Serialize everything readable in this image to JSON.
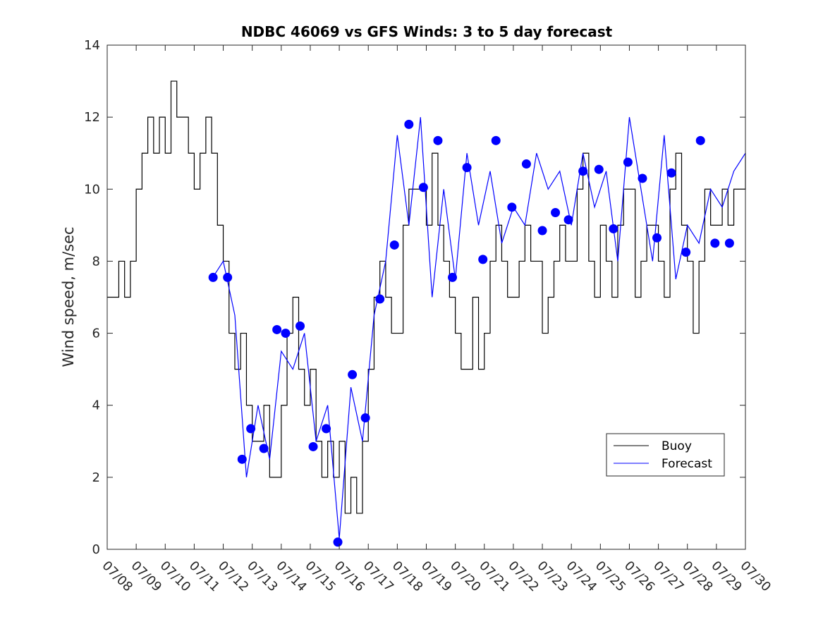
{
  "chart_data": {
    "type": "line",
    "title": "NDBC 46069 vs GFS Winds: 3 to 5 day forecast",
    "xlabel": "",
    "ylabel": "Wind speed, m/sec",
    "ylim": [
      0,
      14
    ],
    "xlim": [
      "07/08",
      "07/30"
    ],
    "y_ticks": [
      "0",
      "2",
      "4",
      "6",
      "8",
      "10",
      "12",
      "14"
    ],
    "x_ticks": [
      "07/08",
      "07/09",
      "07/10",
      "07/11",
      "07/12",
      "07/13",
      "07/14",
      "07/15",
      "07/16",
      "07/17",
      "07/18",
      "07/19",
      "07/20",
      "07/21",
      "07/22",
      "07/23",
      "07/24",
      "07/25",
      "07/26",
      "07/27",
      "07/28",
      "07/29",
      "07/30"
    ],
    "x_units": "days since 07/08 on the shared date axis",
    "legend": {
      "placement": "lower-right",
      "entries": [
        "Buoy",
        "Forecast"
      ]
    },
    "colors": {
      "buoy": "#000000",
      "forecast": "#0000ff"
    },
    "series": [
      {
        "name": "Buoy",
        "style": "line",
        "x": [
          0.0,
          0.2,
          0.4,
          0.6,
          0.8,
          1.0,
          1.2,
          1.4,
          1.6,
          1.8,
          2.0,
          2.2,
          2.4,
          2.6,
          2.8,
          3.0,
          3.2,
          3.4,
          3.6,
          3.8,
          4.0,
          4.2,
          4.4,
          4.6,
          4.8,
          5.0,
          5.2,
          5.4,
          5.6,
          5.8,
          6.0,
          6.2,
          6.4,
          6.6,
          6.8,
          7.0,
          7.2,
          7.4,
          7.6,
          7.8,
          8.0,
          8.2,
          8.4,
          8.6,
          8.8,
          9.0,
          9.2,
          9.4,
          9.6,
          9.8,
          10.0,
          10.2,
          10.4,
          10.6,
          10.8,
          11.0,
          11.2,
          11.4,
          11.6,
          11.8,
          12.0,
          12.2,
          12.4,
          12.6,
          12.8,
          13.0,
          13.2,
          13.4,
          13.6,
          13.8,
          14.0,
          14.2,
          14.4,
          14.6,
          14.8,
          15.0,
          15.2,
          15.4,
          15.6,
          15.8,
          16.0,
          16.2,
          16.4,
          16.6,
          16.8,
          17.0,
          17.2,
          17.4,
          17.6,
          17.8,
          18.0,
          18.2,
          18.4,
          18.6,
          18.8,
          19.0,
          19.2,
          19.4,
          19.6,
          19.8,
          20.0,
          20.2,
          20.4,
          20.6,
          20.8,
          21.0,
          21.2,
          21.4,
          21.6,
          21.8,
          22.0
        ],
        "y": [
          7,
          7,
          8,
          7,
          8,
          10,
          11,
          12,
          11,
          12,
          11,
          13,
          12,
          12,
          11,
          10,
          11,
          12,
          11,
          9,
          8,
          6,
          5,
          6,
          4,
          3,
          3,
          4,
          2,
          2,
          4,
          6,
          7,
          5,
          4,
          5,
          3,
          2,
          3,
          2,
          3,
          1,
          2,
          1,
          3,
          5,
          7,
          8,
          7,
          6,
          6,
          9,
          10,
          10,
          10,
          9,
          11,
          9,
          8,
          7,
          6,
          5,
          5,
          7,
          5,
          6,
          8,
          9,
          8,
          7,
          7,
          8,
          9,
          8,
          8,
          6,
          7,
          8,
          9,
          8,
          8,
          10,
          11,
          8,
          7,
          9,
          8,
          7,
          9,
          10,
          10,
          7,
          8,
          9,
          9,
          8,
          7,
          10,
          11,
          9,
          8,
          6,
          8,
          10,
          9,
          9,
          10,
          9,
          10,
          10,
          11
        ]
      },
      {
        "name": "Forecast",
        "style": "line",
        "x": [
          3.6,
          4.0,
          4.4,
          4.8,
          5.2,
          5.6,
          6.0,
          6.4,
          6.8,
          7.2,
          7.6,
          8.0,
          8.4,
          8.8,
          9.2,
          9.6,
          10.0,
          10.4,
          10.8,
          11.2,
          11.6,
          12.0,
          12.4,
          12.8,
          13.2,
          13.6,
          14.0,
          14.4,
          14.8,
          15.2,
          15.6,
          16.0,
          16.4,
          16.8,
          17.2,
          17.6,
          18.0,
          18.4,
          18.8,
          19.2,
          19.6,
          20.0,
          20.4,
          20.8,
          21.2,
          21.6,
          22.0
        ],
        "y": [
          7.5,
          8.0,
          6.5,
          2.0,
          4.0,
          2.5,
          5.5,
          5.0,
          6.0,
          3.0,
          4.0,
          0.3,
          4.5,
          3.0,
          6.5,
          8.0,
          11.5,
          9.0,
          12.0,
          7.0,
          10.0,
          7.5,
          11.0,
          9.0,
          10.5,
          8.5,
          9.5,
          9.0,
          11.0,
          10.0,
          10.5,
          9.0,
          11.0,
          9.5,
          10.5,
          8.0,
          12.0,
          10.0,
          8.0,
          11.5,
          7.5,
          9.0,
          8.5,
          10.0,
          9.5,
          10.5,
          11.0
        ]
      },
      {
        "name": "Forecast markers",
        "style": "markers",
        "x": [
          3.65,
          4.15,
          4.65,
          4.95,
          5.4,
          5.85,
          6.15,
          6.65,
          7.1,
          7.55,
          7.95,
          8.45,
          8.9,
          9.4,
          9.9,
          10.4,
          10.9,
          11.4,
          11.9,
          12.4,
          12.95,
          13.4,
          13.95,
          14.45,
          15.0,
          15.45,
          15.9,
          16.4,
          16.95,
          17.45,
          17.95,
          18.45,
          18.95,
          19.45,
          19.95,
          20.45,
          20.95,
          21.45
        ],
        "y": [
          7.55,
          7.55,
          2.5,
          3.35,
          2.8,
          6.1,
          6.0,
          6.2,
          2.85,
          3.35,
          0.2,
          4.85,
          3.65,
          6.95,
          8.45,
          11.8,
          10.05,
          11.35,
          7.55,
          10.6,
          8.05,
          11.35,
          9.5,
          10.7,
          8.85,
          9.35,
          9.15,
          10.5,
          10.55,
          8.9,
          10.75,
          10.3,
          8.65,
          10.45,
          8.25,
          11.35,
          8.5,
          8.5
        ]
      }
    ]
  }
}
